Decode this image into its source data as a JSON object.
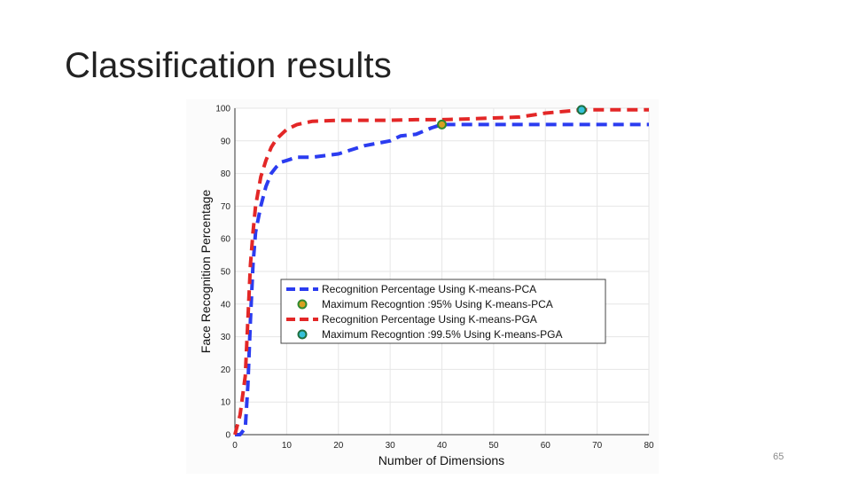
{
  "slide": {
    "title": "Classification results",
    "number": "65"
  },
  "chart_data": {
    "type": "line",
    "xlabel": "Number of Dimensions",
    "ylabel": "Face Recognition Percentage",
    "xlim": [
      0,
      80
    ],
    "ylim": [
      0,
      100
    ],
    "xticks": [
      0,
      10,
      20,
      30,
      40,
      50,
      60,
      70,
      80
    ],
    "yticks": [
      0,
      10,
      20,
      30,
      40,
      50,
      60,
      70,
      80,
      90,
      100
    ],
    "grid": true,
    "legend_position": "center-left",
    "series": [
      {
        "name": "Recognition Percentage Using K-means-PCA",
        "color": "#2b3cf0",
        "style": "dashed",
        "x": [
          0,
          1,
          2,
          2.5,
          3,
          3.5,
          4,
          5,
          6,
          7,
          8,
          9,
          10,
          12,
          15,
          20,
          25,
          30,
          32,
          35,
          38,
          40,
          45,
          50,
          60,
          70,
          80
        ],
        "y": [
          0,
          0,
          2,
          15,
          35,
          52,
          62,
          70,
          76,
          80,
          82,
          83.5,
          84,
          85,
          85,
          86,
          88.5,
          90,
          91.5,
          92,
          94,
          95,
          95,
          95,
          95,
          95,
          95
        ]
      },
      {
        "name": "Recognition Percentage Using K-means-PGA",
        "color": "#e32727",
        "style": "dashed",
        "x": [
          0,
          1,
          2,
          2.5,
          3,
          3.5,
          4,
          5,
          6,
          7,
          8,
          9,
          10,
          12,
          15,
          20,
          25,
          30,
          35,
          40,
          45,
          50,
          55,
          60,
          65,
          67,
          70,
          75,
          80
        ],
        "y": [
          0,
          6,
          18,
          35,
          52,
          62,
          70,
          79,
          84,
          88,
          90.5,
          92,
          93.5,
          95,
          96,
          96.3,
          96.3,
          96.3,
          96.5,
          96.5,
          96.7,
          97,
          97.3,
          98.5,
          99.2,
          99.5,
          99.5,
          99.5,
          99.5
        ]
      }
    ],
    "markers": [
      {
        "name": "Maximum Recogntion :95% Using K-means-PCA",
        "x": 40,
        "y": 95,
        "fill": "#d7a020",
        "edge": "#2f8a2f"
      },
      {
        "name": "Maximum Recogntion :99.5% Using K-means-PGA",
        "x": 67,
        "y": 99.5,
        "fill": "#35c2d9",
        "edge": "#1f6f3f"
      }
    ],
    "legend": [
      "Recognition Percentage Using K-means-PCA",
      "Maximum Recogntion :95% Using K-means-PCA",
      "Recognition Percentage Using K-means-PGA",
      "Maximum Recogntion :99.5% Using K-means-PGA"
    ]
  }
}
